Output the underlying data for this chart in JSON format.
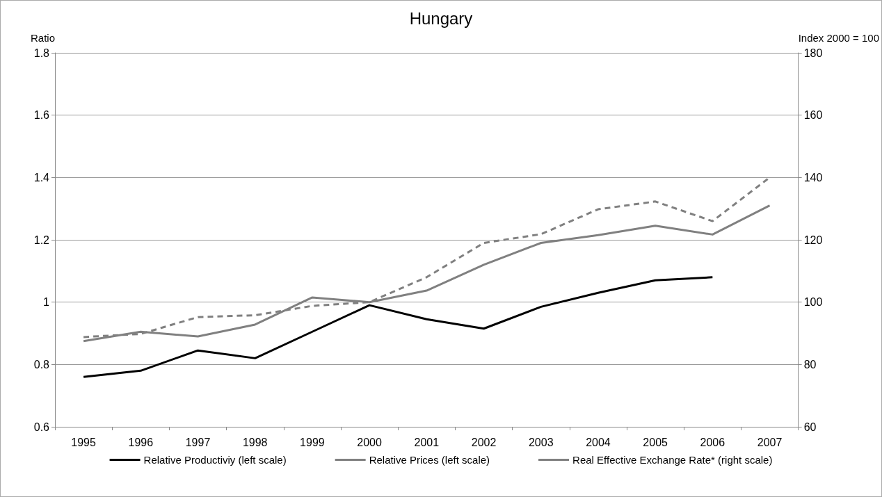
{
  "chart_data": {
    "type": "line",
    "title": "Hungary",
    "ylabel": "Ratio",
    "y2label": "Index 2000 = 100",
    "categories": [
      "1995",
      "1996",
      "1997",
      "1998",
      "1999",
      "2000",
      "2001",
      "2002",
      "2003",
      "2004",
      "2005",
      "2006",
      "2007"
    ],
    "series": [
      {
        "name": "Relative Productiviy (left scale)",
        "color": "#000000",
        "line_style": "solid",
        "values": [
          0.76,
          0.78,
          0.845,
          0.82,
          0.905,
          0.99,
          0.945,
          0.915,
          0.985,
          1.03,
          1.07,
          1.08,
          null
        ]
      },
      {
        "name": "Relative Prices (left scale)",
        "color": "#808080",
        "line_style": "solid",
        "values": [
          0.875,
          0.905,
          0.89,
          0.928,
          1.015,
          1.0,
          1.037,
          1.12,
          1.19,
          1.215,
          1.245,
          1.217,
          1.31
        ]
      },
      {
        "name": "Real Effective Exchange Rate* (right scale)",
        "color": "#808080",
        "line_style": "dashed",
        "axis": "y2",
        "values": [
          88.8,
          89.8,
          95.2,
          95.8,
          98.8,
          100,
          108,
          119,
          121.8,
          129.8,
          132.3,
          126,
          140
        ]
      }
    ],
    "ylim": [
      0.6,
      1.8
    ],
    "yticks": [
      0.6,
      0.8,
      1,
      1.2,
      1.4,
      1.6,
      1.8
    ],
    "y2lim": [
      60,
      180
    ],
    "y2ticks": [
      60,
      80,
      100,
      120,
      140,
      160,
      180
    ],
    "grid": "y",
    "legend": "bottom",
    "marker": "none"
  }
}
